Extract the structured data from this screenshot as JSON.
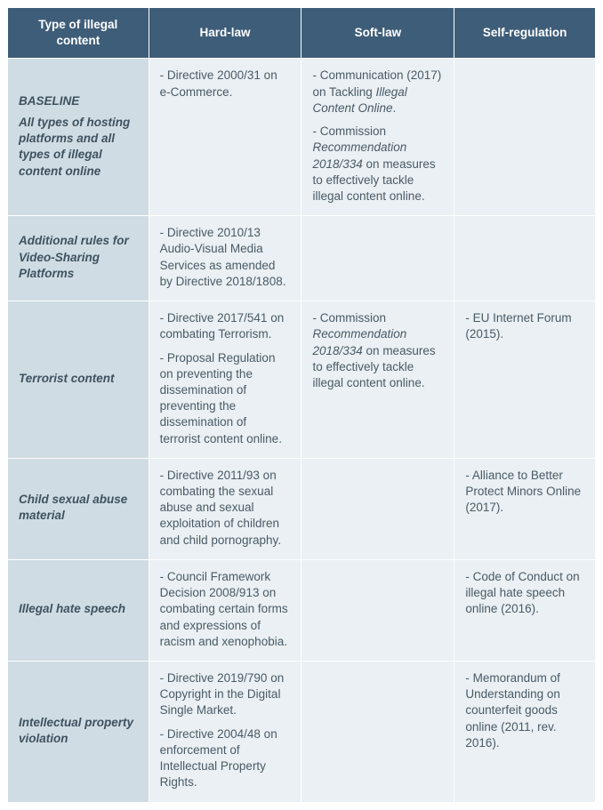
{
  "headers": {
    "type": "Type of illegal content",
    "hard": "Hard-law",
    "soft": "Soft-law",
    "self": "Self-regulation"
  },
  "rows": {
    "baseline": {
      "label_strong": "BASELINE",
      "label_rest": "All types of hosting platforms and all types of illegal content online",
      "hard": "- Directive 2000/31 on e-Commerce.",
      "soft1a": "- Communication (2017) on Tackling ",
      "soft1b": "Illegal Content Online",
      "soft1c": ".",
      "soft2a": "- Commission ",
      "soft2b": "Recommendation 2018/334",
      "soft2c": " on measures to effectively tackle illegal content online.",
      "self": ""
    },
    "vsp": {
      "label": "Additional rules for Video-Sharing Platforms",
      "hard": "- Directive 2010/13 Audio-Visual Media Services as amended by Directive 2018/1808.",
      "soft": "",
      "self": ""
    },
    "terror": {
      "label": "Terrorist content",
      "hard1": "- Directive 2017/541 on combating Terrorism.",
      "hard2": "- Proposal Regulation on preventing the dissemination of preventing the dissemination of terrorist content online.",
      "soft_a": "- Commission ",
      "soft_b": "Recommendation 2018/334",
      "soft_c": " on measures to effectively tackle illegal content online.",
      "self": "- EU Internet Forum (2015)."
    },
    "csam": {
      "label": "Child sexual abuse material",
      "hard": "- Directive 2011/93 on combating the sexual abuse and sexual exploitation of children and child pornography.",
      "soft": "",
      "self": "- Alliance to Better Protect Minors Online (2017)."
    },
    "hate": {
      "label": "Illegal hate speech",
      "hard": "- Council Framework Decision 2008/913 on combating certain forms and expressions of racism and xenophobia.",
      "soft": "",
      "self": "- Code of Conduct on illegal hate speech online (2016)."
    },
    "ip": {
      "label": "Intellectual property violation",
      "hard1": "- Directive 2019/790 on Copyright in the Digital Single Market.",
      "hard2": "- Directive 2004/48 on enforcement of Intellectual Property Rights.",
      "soft": "",
      "self": "- Memorandum of Understanding on counterfeit goods online (2011, rev. 2016)."
    }
  }
}
